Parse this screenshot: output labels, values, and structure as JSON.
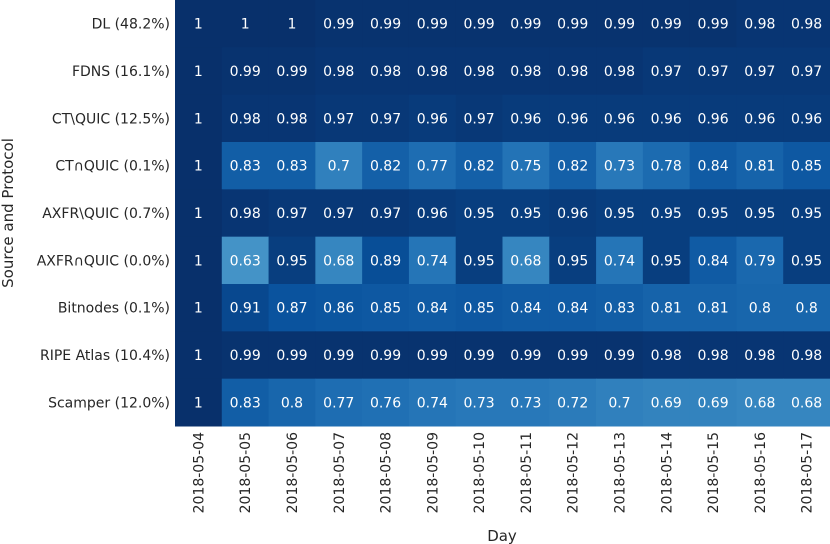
{
  "chart_data": {
    "type": "heatmap",
    "xlabel": "Day",
    "ylabel": "Source and Protocol",
    "columns": [
      "2018-05-04",
      "2018-05-05",
      "2018-05-06",
      "2018-05-07",
      "2018-05-08",
      "2018-05-09",
      "2018-05-10",
      "2018-05-11",
      "2018-05-12",
      "2018-05-13",
      "2018-05-14",
      "2018-05-15",
      "2018-05-16",
      "2018-05-17"
    ],
    "rows": [
      "DL (48.2%)",
      "FDNS (16.1%)",
      "CT\\QUIC (12.5%)",
      "CT∩QUIC (0.1%)",
      "AXFR\\QUIC (0.7%)",
      "AXFR∩QUIC (0.0%)",
      "Bitnodes (0.1%)",
      "RIPE Atlas (10.4%)",
      "Scamper (12.0%)"
    ],
    "values": [
      [
        1,
        1,
        1,
        0.99,
        0.99,
        0.99,
        0.99,
        0.99,
        0.99,
        0.99,
        0.99,
        0.99,
        0.98,
        0.98
      ],
      [
        1,
        0.99,
        0.99,
        0.98,
        0.98,
        0.98,
        0.98,
        0.98,
        0.98,
        0.98,
        0.97,
        0.97,
        0.97,
        0.97
      ],
      [
        1,
        0.98,
        0.98,
        0.97,
        0.97,
        0.96,
        0.97,
        0.96,
        0.96,
        0.96,
        0.96,
        0.96,
        0.96,
        0.96
      ],
      [
        1,
        0.83,
        0.83,
        0.7,
        0.82,
        0.77,
        0.82,
        0.75,
        0.82,
        0.73,
        0.78,
        0.84,
        0.81,
        0.85
      ],
      [
        1,
        0.98,
        0.97,
        0.97,
        0.97,
        0.96,
        0.95,
        0.95,
        0.96,
        0.95,
        0.95,
        0.95,
        0.95,
        0.95
      ],
      [
        1,
        0.63,
        0.95,
        0.68,
        0.89,
        0.74,
        0.95,
        0.68,
        0.95,
        0.74,
        0.95,
        0.84,
        0.79,
        0.95
      ],
      [
        1,
        0.91,
        0.87,
        0.86,
        0.85,
        0.84,
        0.85,
        0.84,
        0.84,
        0.83,
        0.81,
        0.81,
        0.8,
        0.8
      ],
      [
        1,
        0.99,
        0.99,
        0.99,
        0.99,
        0.99,
        0.99,
        0.99,
        0.99,
        0.99,
        0.98,
        0.98,
        0.98,
        0.98
      ],
      [
        1,
        0.83,
        0.8,
        0.77,
        0.76,
        0.74,
        0.73,
        0.73,
        0.72,
        0.7,
        0.69,
        0.69,
        0.68,
        0.68
      ]
    ],
    "colormap": "Blues",
    "annotations": true,
    "grid": false
  }
}
